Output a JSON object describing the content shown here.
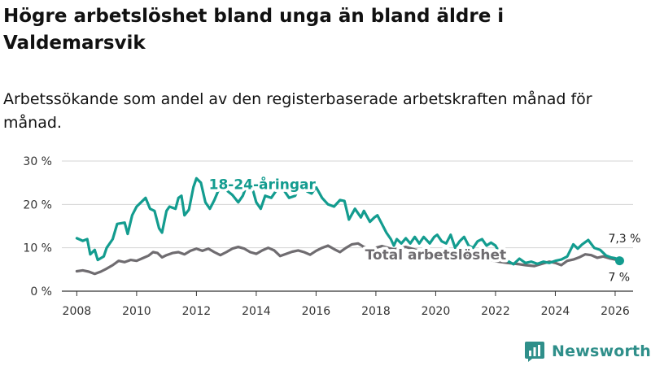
{
  "header": {
    "title": "Högre arbetslöshet bland unga än bland äldre i Valdemarsvik",
    "subtitle": "Arbetssökande som andel av den registerbaserade arbetskraften månad för månad."
  },
  "brand": {
    "name": "Newsworthy",
    "logo_icon": "bar-chart-icon"
  },
  "colors": {
    "youth": "#139c8f",
    "total": "#6f6c70",
    "grid": "#d4d4d4",
    "axis": "#333333",
    "brand": "#2f8f8a"
  },
  "chart_data": {
    "type": "line",
    "title": "Högre arbetslöshet bland unga än bland äldre i Valdemarsvik",
    "xlabel": "",
    "ylabel": "",
    "xlim": [
      2007.5,
      2026.6
    ],
    "ylim": [
      0,
      30
    ],
    "yticks": [
      0,
      10,
      20,
      30
    ],
    "ytick_labels": [
      "0 %",
      "10 %",
      "20 %",
      "30 %"
    ],
    "xticks": [
      2008,
      2010,
      2012,
      2014,
      2016,
      2018,
      2020,
      2022,
      2024,
      2026
    ],
    "xtick_labels": [
      "2008",
      "2010",
      "2012",
      "2014",
      "2016",
      "2018",
      "2020",
      "2022",
      "2024",
      "2026"
    ],
    "series": [
      {
        "name": "18-24-åringar",
        "label": "18-24-åringar",
        "end_label": "7,3 %",
        "points": [
          [
            2008.0,
            12.2
          ],
          [
            2008.2,
            11.6
          ],
          [
            2008.35,
            12.0
          ],
          [
            2008.45,
            8.5
          ],
          [
            2008.6,
            9.5
          ],
          [
            2008.7,
            7.2
          ],
          [
            2008.9,
            8.0
          ],
          [
            2009.0,
            10.0
          ],
          [
            2009.2,
            12.0
          ],
          [
            2009.35,
            15.5
          ],
          [
            2009.6,
            15.8
          ],
          [
            2009.7,
            13.2
          ],
          [
            2009.85,
            17.5
          ],
          [
            2010.0,
            19.5
          ],
          [
            2010.15,
            20.5
          ],
          [
            2010.3,
            21.5
          ],
          [
            2010.45,
            19.0
          ],
          [
            2010.6,
            18.5
          ],
          [
            2010.75,
            14.5
          ],
          [
            2010.85,
            13.5
          ],
          [
            2011.0,
            18.5
          ],
          [
            2011.1,
            19.5
          ],
          [
            2011.3,
            19.0
          ],
          [
            2011.4,
            21.5
          ],
          [
            2011.5,
            22.0
          ],
          [
            2011.6,
            17.5
          ],
          [
            2011.75,
            18.8
          ],
          [
            2011.9,
            24.0
          ],
          [
            2012.0,
            26.0
          ],
          [
            2012.15,
            25.0
          ],
          [
            2012.3,
            20.5
          ],
          [
            2012.45,
            19.0
          ],
          [
            2012.6,
            21.0
          ],
          [
            2012.75,
            23.5
          ],
          [
            2012.9,
            24.8
          ],
          [
            2013.05,
            23.0
          ],
          [
            2013.2,
            22.2
          ],
          [
            2013.4,
            20.5
          ],
          [
            2013.55,
            22.0
          ],
          [
            2013.7,
            24.8
          ],
          [
            2013.9,
            23.0
          ],
          [
            2014.0,
            20.5
          ],
          [
            2014.15,
            19.0
          ],
          [
            2014.3,
            22.0
          ],
          [
            2014.5,
            21.5
          ],
          [
            2014.65,
            23.0
          ],
          [
            2014.8,
            24.5
          ],
          [
            2014.95,
            23.0
          ],
          [
            2015.1,
            21.5
          ],
          [
            2015.3,
            22.0
          ],
          [
            2015.5,
            24.8
          ],
          [
            2015.7,
            23.0
          ],
          [
            2015.85,
            22.5
          ],
          [
            2016.0,
            24.0
          ],
          [
            2016.2,
            21.5
          ],
          [
            2016.4,
            20.0
          ],
          [
            2016.6,
            19.5
          ],
          [
            2016.8,
            21.0
          ],
          [
            2016.95,
            20.8
          ],
          [
            2017.1,
            16.5
          ],
          [
            2017.3,
            19.0
          ],
          [
            2017.5,
            17.0
          ],
          [
            2017.6,
            18.5
          ],
          [
            2017.8,
            16.0
          ],
          [
            2017.95,
            17.0
          ],
          [
            2018.05,
            17.5
          ],
          [
            2018.2,
            15.5
          ],
          [
            2018.35,
            13.5
          ],
          [
            2018.5,
            12.0
          ],
          [
            2018.6,
            10.5
          ],
          [
            2018.7,
            12.0
          ],
          [
            2018.85,
            11.0
          ],
          [
            2019.0,
            12.2
          ],
          [
            2019.15,
            11.0
          ],
          [
            2019.3,
            12.5
          ],
          [
            2019.45,
            11.0
          ],
          [
            2019.6,
            12.5
          ],
          [
            2019.8,
            11.0
          ],
          [
            2019.95,
            12.5
          ],
          [
            2020.05,
            13.0
          ],
          [
            2020.2,
            11.5
          ],
          [
            2020.35,
            11.0
          ],
          [
            2020.5,
            13.0
          ],
          [
            2020.65,
            10.0
          ],
          [
            2020.8,
            11.5
          ],
          [
            2020.95,
            12.5
          ],
          [
            2021.1,
            10.5
          ],
          [
            2021.25,
            10.0
          ],
          [
            2021.4,
            11.5
          ],
          [
            2021.55,
            12.0
          ],
          [
            2021.7,
            10.5
          ],
          [
            2021.85,
            11.2
          ],
          [
            2022.0,
            10.5
          ],
          [
            2022.2,
            8.0
          ],
          [
            2022.4,
            7.0
          ],
          [
            2022.6,
            6.2
          ],
          [
            2022.8,
            7.5
          ],
          [
            2023.0,
            6.5
          ],
          [
            2023.2,
            6.8
          ],
          [
            2023.4,
            6.3
          ],
          [
            2023.6,
            6.8
          ],
          [
            2023.8,
            6.5
          ],
          [
            2024.0,
            7.0
          ],
          [
            2024.2,
            7.3
          ],
          [
            2024.4,
            8.0
          ],
          [
            2024.6,
            10.8
          ],
          [
            2024.75,
            9.8
          ],
          [
            2024.9,
            10.8
          ],
          [
            2025.1,
            11.8
          ],
          [
            2025.3,
            10.0
          ],
          [
            2025.5,
            9.5
          ],
          [
            2025.7,
            8.2
          ],
          [
            2025.85,
            7.8
          ],
          [
            2026.0,
            7.6
          ],
          [
            2026.15,
            7.3
          ]
        ]
      },
      {
        "name": "Total arbetslöshet",
        "label": "Total arbetslöshet",
        "end_label": "7 %",
        "points": [
          [
            2008.0,
            4.6
          ],
          [
            2008.2,
            4.8
          ],
          [
            2008.4,
            4.5
          ],
          [
            2008.6,
            4.0
          ],
          [
            2008.8,
            4.5
          ],
          [
            2009.0,
            5.2
          ],
          [
            2009.2,
            6.0
          ],
          [
            2009.4,
            7.0
          ],
          [
            2009.6,
            6.7
          ],
          [
            2009.8,
            7.2
          ],
          [
            2010.0,
            7.0
          ],
          [
            2010.2,
            7.6
          ],
          [
            2010.4,
            8.2
          ],
          [
            2010.55,
            9.0
          ],
          [
            2010.7,
            8.8
          ],
          [
            2010.85,
            7.8
          ],
          [
            2011.0,
            8.3
          ],
          [
            2011.2,
            8.8
          ],
          [
            2011.4,
            9.0
          ],
          [
            2011.6,
            8.5
          ],
          [
            2011.8,
            9.3
          ],
          [
            2012.0,
            9.8
          ],
          [
            2012.2,
            9.3
          ],
          [
            2012.4,
            9.8
          ],
          [
            2012.6,
            9.0
          ],
          [
            2012.8,
            8.3
          ],
          [
            2013.0,
            9.0
          ],
          [
            2013.2,
            9.8
          ],
          [
            2013.4,
            10.2
          ],
          [
            2013.6,
            9.8
          ],
          [
            2013.8,
            9.0
          ],
          [
            2014.0,
            8.6
          ],
          [
            2014.2,
            9.4
          ],
          [
            2014.4,
            10.0
          ],
          [
            2014.6,
            9.4
          ],
          [
            2014.8,
            8.1
          ],
          [
            2015.0,
            8.6
          ],
          [
            2015.2,
            9.1
          ],
          [
            2015.4,
            9.4
          ],
          [
            2015.6,
            9.0
          ],
          [
            2015.8,
            8.4
          ],
          [
            2016.0,
            9.3
          ],
          [
            2016.2,
            10.0
          ],
          [
            2016.4,
            10.5
          ],
          [
            2016.6,
            9.7
          ],
          [
            2016.8,
            9.0
          ],
          [
            2017.0,
            10.0
          ],
          [
            2017.2,
            10.8
          ],
          [
            2017.4,
            11.0
          ],
          [
            2017.6,
            10.2
          ],
          [
            2017.8,
            9.6
          ],
          [
            2018.0,
            10.0
          ],
          [
            2018.2,
            10.4
          ],
          [
            2018.4,
            10.0
          ],
          [
            2018.6,
            9.6
          ],
          [
            2018.8,
            9.9
          ],
          [
            2019.0,
            10.2
          ],
          [
            2019.3,
            9.6
          ],
          [
            2019.6,
            9.2
          ],
          [
            2020.0,
            9.0
          ],
          [
            2020.4,
            8.7
          ],
          [
            2020.8,
            8.3
          ],
          [
            2021.2,
            8.2
          ],
          [
            2021.6,
            7.6
          ],
          [
            2022.0,
            6.9
          ],
          [
            2022.4,
            6.5
          ],
          [
            2022.8,
            6.2
          ],
          [
            2023.0,
            6.0
          ],
          [
            2023.3,
            5.8
          ],
          [
            2023.6,
            6.4
          ],
          [
            2023.8,
            6.8
          ],
          [
            2024.0,
            6.5
          ],
          [
            2024.2,
            6.0
          ],
          [
            2024.4,
            7.0
          ],
          [
            2024.6,
            7.3
          ],
          [
            2024.8,
            7.8
          ],
          [
            2025.0,
            8.5
          ],
          [
            2025.2,
            8.3
          ],
          [
            2025.4,
            7.7
          ],
          [
            2025.6,
            8.0
          ],
          [
            2025.8,
            7.6
          ],
          [
            2026.0,
            7.3
          ],
          [
            2026.15,
            7.0
          ]
        ]
      }
    ]
  }
}
